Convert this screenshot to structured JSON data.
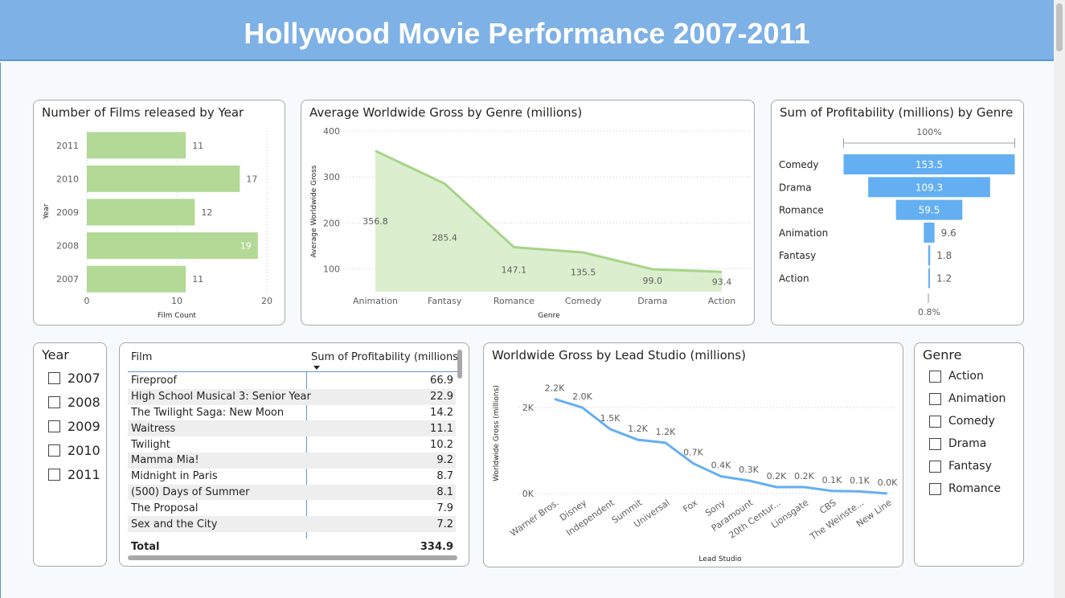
{
  "header": {
    "title": "Hollywood Movie Performance 2007-2011"
  },
  "colors": {
    "header_bg": "#7eb1e6",
    "green_bar": "#b3d996",
    "green_line": "#a6d48a",
    "green_area": "#dbefcf",
    "blue": "#64aff2"
  },
  "chart_data": [
    {
      "type": "bar",
      "orientation": "horizontal",
      "title": "Number of Films released by Year",
      "xlabel": "Film Count",
      "ylabel": "Year",
      "categories": [
        "2011",
        "2010",
        "2009",
        "2008",
        "2007"
      ],
      "values": [
        11,
        17,
        12,
        19,
        11
      ],
      "labels": [
        "11",
        "17",
        "12",
        "19",
        "11"
      ],
      "xlim": [
        0,
        20
      ],
      "xticks": [
        "0",
        "10",
        "20"
      ],
      "grid": true
    },
    {
      "type": "area",
      "title": "Average Worldwide Gross by Genre (millions)",
      "xlabel": "Genre",
      "ylabel": "Average Worldwide Gross",
      "categories": [
        "Animation",
        "Fantasy",
        "Romance",
        "Comedy",
        "Drama",
        "Action"
      ],
      "values": [
        356.8,
        285.4,
        147.1,
        135.5,
        99.0,
        93.4
      ],
      "labels": [
        "356.8",
        "285.4",
        "147.1",
        "135.5",
        "99.0",
        "93.4"
      ],
      "ylim": [
        50,
        400
      ],
      "yticks": [
        "400",
        "300",
        "200",
        "100"
      ],
      "grid": true
    },
    {
      "type": "funnel",
      "title": "Sum of Profitability (millions) by Genre",
      "categories": [
        "Comedy",
        "Drama",
        "Romance",
        "Animation",
        "Fantasy",
        "Action"
      ],
      "values": [
        153.5,
        109.3,
        59.5,
        9.6,
        1.8,
        1.2
      ],
      "labels": [
        "153.5",
        "109.3",
        "59.5",
        "9.6",
        "1.8",
        "1.2"
      ],
      "top_label": "100%",
      "bottom_label": "0.8%"
    },
    {
      "type": "line",
      "title": "Worldwide Gross by Lead Studio (millions)",
      "xlabel": "Lead Studio",
      "ylabel": "Worldwide Gross (millions)",
      "categories": [
        "Warner Bros.",
        "Disney",
        "Independent",
        "Summit",
        "Universal",
        "Fox",
        "Sony",
        "Paramount",
        "20th Centur...",
        "Lionsgate",
        "CBS",
        "The Weinste...",
        "New Line"
      ],
      "values": [
        2200,
        2000,
        1500,
        1250,
        1180,
        700,
        400,
        300,
        150,
        150,
        60,
        50,
        0
      ],
      "labels": [
        "2.2K",
        "2.0K",
        "1.5K",
        "1.2K",
        "1.2K",
        "0.7K",
        "0.4K",
        "0.3K",
        "0.2K",
        "0.2K",
        "0.1K",
        "0.1K",
        "0.0K"
      ],
      "ylim": [
        0,
        2600
      ],
      "yticks": [
        "2K",
        "0K"
      ],
      "grid": true
    },
    {
      "type": "table",
      "columns": [
        "Film",
        "Sum of Profitability (millions)"
      ],
      "rows": [
        {
          "film": "Fireproof",
          "value": "66.9"
        },
        {
          "film": "High School Musical 3: Senior Year",
          "value": "22.9"
        },
        {
          "film": "The Twilight Saga: New Moon",
          "value": "14.2"
        },
        {
          "film": "Waitress",
          "value": "11.1"
        },
        {
          "film": "Twilight",
          "value": "10.2"
        },
        {
          "film": "Mamma Mia!",
          "value": "9.2"
        },
        {
          "film": "Midnight in Paris",
          "value": "8.7"
        },
        {
          "film": "(500) Days of Summer",
          "value": "8.1"
        },
        {
          "film": "The Proposal",
          "value": "7.9"
        },
        {
          "film": "Sex and the City",
          "value": "7.2"
        }
      ],
      "total": {
        "label": "Total",
        "value": "334.9"
      }
    }
  ],
  "slicers": {
    "year": {
      "title": "Year",
      "items": [
        "2007",
        "2008",
        "2009",
        "2010",
        "2011"
      ]
    },
    "genre": {
      "title": "Genre",
      "items": [
        "Action",
        "Animation",
        "Comedy",
        "Drama",
        "Fantasy",
        "Romance"
      ]
    }
  }
}
